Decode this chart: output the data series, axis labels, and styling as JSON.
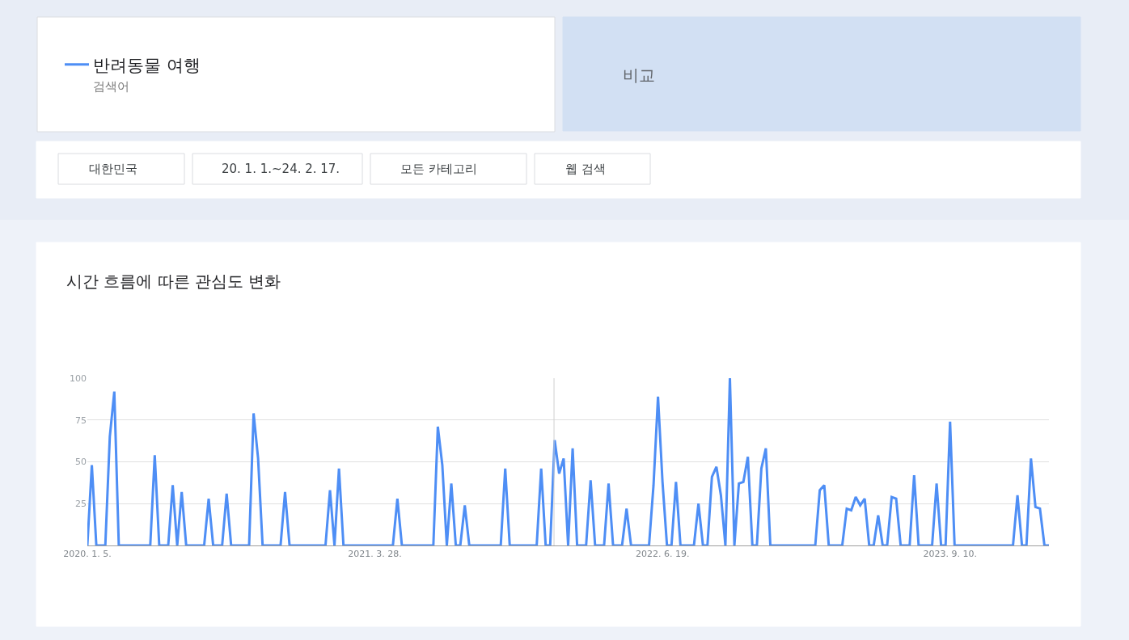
{
  "chart_data": {
    "type": "line",
    "title": "시간 흐름에 따른 관심도 변화",
    "annotations": [
      "검색어",
      "비교",
      "대한민국",
      "20. 1. 1.~24. 2. 17.",
      "모든 카테고리",
      "웹 검색"
    ],
    "series": [
      {
        "name": "반려동물 여행",
        "color": "#4e8ef5",
        "x": [
          "2020-01-05",
          "2020-01-12",
          "2020-01-19",
          "2020-02-02",
          "2020-02-09",
          "2020-02-16",
          "2020-02-23",
          "2020-04-12",
          "2020-04-19",
          "2020-04-26",
          "2020-05-10",
          "2020-05-17",
          "2020-05-24",
          "2020-05-31",
          "2020-06-07",
          "2020-07-05",
          "2020-07-12",
          "2020-07-19",
          "2020-08-02",
          "2020-08-09",
          "2020-08-16",
          "2020-09-13",
          "2020-09-20",
          "2020-09-27",
          "2020-10-04",
          "2020-11-01",
          "2020-11-08",
          "2020-11-15",
          "2021-01-10",
          "2021-01-17",
          "2021-01-24",
          "2021-01-31",
          "2021-02-07",
          "2021-04-25",
          "2021-05-02",
          "2021-05-09",
          "2021-06-27",
          "2021-07-04",
          "2021-07-11",
          "2021-07-18",
          "2021-07-25",
          "2021-08-01",
          "2021-08-08",
          "2021-08-15",
          "2021-08-22",
          "2021-10-10",
          "2021-10-17",
          "2021-10-24",
          "2021-12-05",
          "2021-12-12",
          "2021-12-19",
          "2021-12-26",
          "2022-01-02",
          "2022-01-09",
          "2022-01-16",
          "2022-01-23",
          "2022-01-30",
          "2022-02-06",
          "2022-02-20",
          "2022-02-27",
          "2022-03-06",
          "2022-03-20",
          "2022-03-27",
          "2022-04-03",
          "2022-04-17",
          "2022-04-24",
          "2022-05-01",
          "2022-05-29",
          "2022-06-05",
          "2022-06-12",
          "2022-06-19",
          "2022-06-26",
          "2022-07-03",
          "2022-07-10",
          "2022-07-17",
          "2022-08-07",
          "2022-08-14",
          "2022-08-21",
          "2022-08-28",
          "2022-09-04",
          "2022-09-11",
          "2022-09-18",
          "2022-09-25",
          "2022-10-02",
          "2022-10-09",
          "2022-10-16",
          "2022-10-23",
          "2022-10-30",
          "2022-11-06",
          "2022-11-13",
          "2022-11-20",
          "2022-11-27",
          "2022-12-04",
          "2023-02-12",
          "2023-02-19",
          "2023-02-26",
          "2023-03-05",
          "2023-03-26",
          "2023-04-02",
          "2023-04-09",
          "2023-04-16",
          "2023-04-23",
          "2023-04-30",
          "2023-05-07",
          "2023-05-14",
          "2023-05-21",
          "2023-05-28",
          "2023-06-04",
          "2023-06-11",
          "2023-06-18",
          "2023-06-25",
          "2023-07-09",
          "2023-07-16",
          "2023-07-23",
          "2023-08-13",
          "2023-08-20",
          "2023-08-27",
          "2023-09-03",
          "2023-09-10",
          "2023-09-17",
          "2023-12-17",
          "2023-12-24",
          "2023-12-31",
          "2024-01-07",
          "2024-01-14",
          "2024-01-21",
          "2024-01-28",
          "2024-02-04",
          "2024-02-11"
        ],
        "values": [
          0,
          48,
          0,
          0,
          65,
          92,
          0,
          0,
          54,
          0,
          0,
          36,
          0,
          32,
          0,
          0,
          28,
          0,
          0,
          31,
          0,
          0,
          79,
          52,
          0,
          0,
          32,
          0,
          0,
          33,
          0,
          46,
          0,
          0,
          28,
          0,
          0,
          71,
          48,
          0,
          37,
          0,
          0,
          24,
          0,
          0,
          46,
          0,
          0,
          46,
          0,
          0,
          63,
          43,
          52,
          0,
          58,
          0,
          0,
          39,
          0,
          0,
          37,
          0,
          0,
          22,
          0,
          0,
          36,
          89,
          38,
          0,
          0,
          38,
          0,
          0,
          25,
          0,
          0,
          41,
          47,
          30,
          0,
          100,
          0,
          37,
          38,
          53,
          0,
          0,
          46,
          58,
          0,
          0,
          33,
          36,
          0,
          0,
          22,
          21,
          29,
          24,
          28,
          0,
          0,
          18,
          0,
          0,
          29,
          28,
          0,
          0,
          42,
          0,
          0,
          37,
          0,
          0,
          74,
          0,
          0,
          30,
          0,
          0,
          52,
          23,
          22,
          0,
          0
        ]
      }
    ],
    "xlim": [
      "2020-01-05",
      "2024-02-11"
    ],
    "xticks": [
      {
        "value": "2020-01-05",
        "label": "2020. 1. 5."
      },
      {
        "value": "2021-03-28",
        "label": "2021. 3. 28."
      },
      {
        "value": "2022-06-19",
        "label": "2022. 6. 19."
      },
      {
        "value": "2023-09-10",
        "label": "2023. 9. 10."
      }
    ],
    "ylim": [
      0,
      100
    ],
    "yticks": [
      {
        "value": 0,
        "label": null
      },
      25,
      50,
      75,
      100
    ],
    "grid": "y",
    "legend": "top left",
    "line_style": "solid",
    "marker": "none",
    "ref_lines": [
      {
        "axis": "x",
        "value": "2022-01-01",
        "color": "#d0d0d0"
      }
    ]
  }
}
